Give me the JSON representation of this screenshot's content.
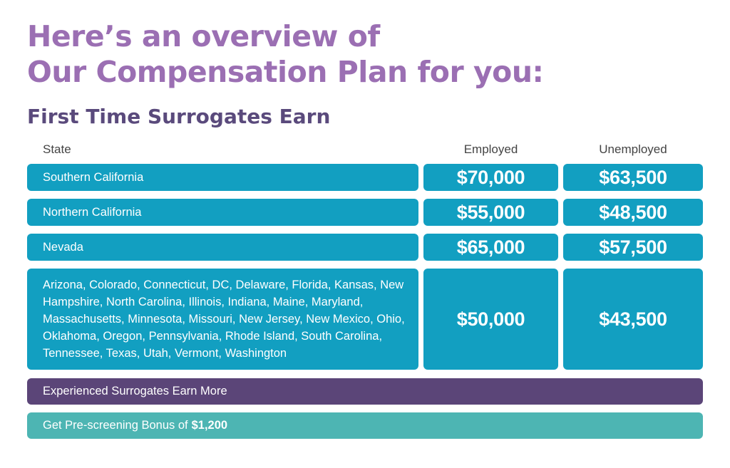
{
  "heading": {
    "line1": "Here’s an overview of",
    "line2": "Our Compensation Plan for you:"
  },
  "subheading": "First Time Surrogates Earn",
  "table": {
    "headers": {
      "state": "State",
      "employed": "Employed",
      "unemployed": "Unemployed"
    },
    "rows": [
      {
        "state": "Southern California",
        "employed": "$70,000",
        "unemployed": "$63,500"
      },
      {
        "state": "Northern California",
        "employed": "$55,000",
        "unemployed": "$48,500"
      },
      {
        "state": "Nevada",
        "employed": "$65,000",
        "unemployed": "$57,500"
      },
      {
        "state": "Arizona, Colorado, Connecticut, DC, Delaware, Florida, Kansas, New Hampshire, North Carolina, Illinois, Indiana, Maine, Maryland, Massachusetts, Minnesota, Missouri, New Jersey, New Mexico, Ohio, Oklahoma, Oregon, Pennsylvania, Rhode Island, South Carolina, Tennessee, Texas, Utah, Vermont, Washington",
        "employed": "$50,000",
        "unemployed": "$43,500"
      }
    ]
  },
  "banners": {
    "experienced": "Experienced Surrogates Earn More",
    "bonus_label": "Get Pre-screening Bonus of",
    "bonus_amount": "$1,200"
  },
  "colors": {
    "heading": "#9b6fb3",
    "subheading": "#5a4a7c",
    "cell": "#129fc1",
    "experienced_bar": "#5b4578",
    "bonus_bar": "#4db5b3"
  }
}
